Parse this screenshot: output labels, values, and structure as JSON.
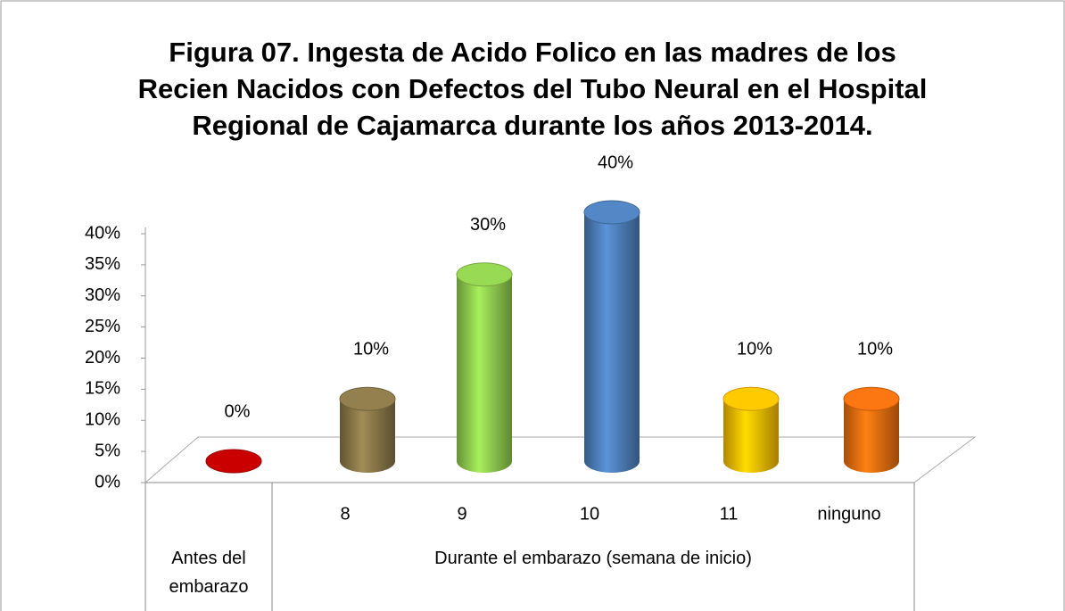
{
  "chart_data": {
    "type": "bar3d",
    "title": "Figura 07. Ingesta de Acido Folico en las madres de los Recien Nacidos con Defectos del Tubo Neural en el Hospital Regional de Cajamarca durante los años 2013-2014.",
    "categories": [
      null,
      "8",
      "9",
      "10",
      "11",
      "ninguno"
    ],
    "outer_categories": [
      "Antes del embarazo",
      "Durante el embarazo (semana de inicio)"
    ],
    "values": [
      0,
      10,
      30,
      40,
      10,
      10
    ],
    "value_labels": [
      "0%",
      "10%",
      "30%",
      "40%",
      "10%",
      "10%"
    ],
    "colors": [
      "#c00000",
      "#8c7a4a",
      "#92d050",
      "#4f81bd",
      "#ffc000",
      "#f07010"
    ],
    "ylim": [
      0,
      40
    ],
    "yticks": [
      {
        "value": 0,
        "label": "0%"
      },
      {
        "value": 5,
        "label": "5%"
      },
      {
        "value": 10,
        "label": "10%"
      },
      {
        "value": 15,
        "label": "15%"
      },
      {
        "value": 20,
        "label": "20%"
      },
      {
        "value": 25,
        "label": "25%"
      },
      {
        "value": 30,
        "label": "30%"
      },
      {
        "value": 35,
        "label": "35%"
      },
      {
        "value": 40,
        "label": "40%"
      }
    ]
  }
}
